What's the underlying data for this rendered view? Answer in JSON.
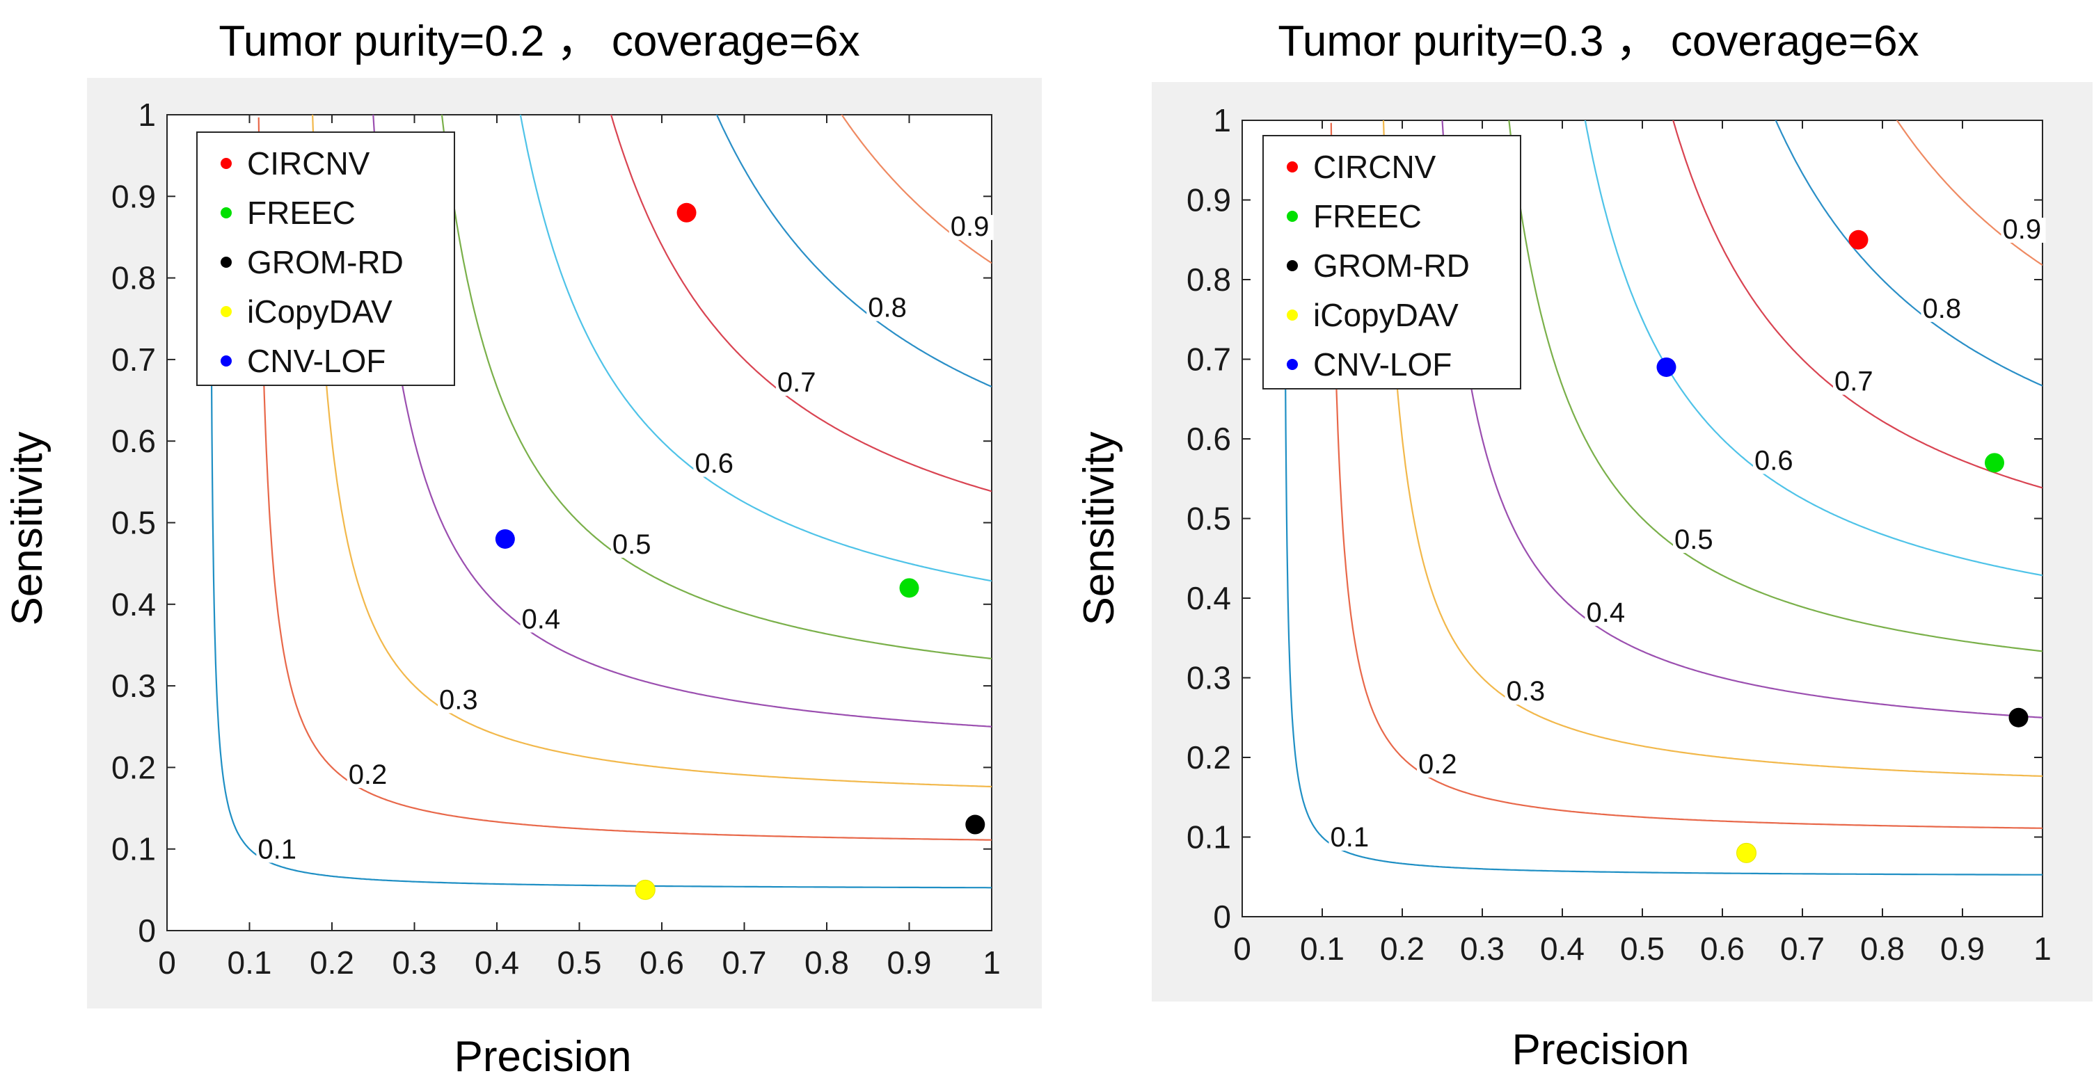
{
  "chart_data": [
    {
      "type": "scatter",
      "title": "Tumor purity=0.2 ， coverage=6x",
      "xlabel": "Precision",
      "ylabel": "Sensitivity",
      "xlim": [
        0,
        1
      ],
      "ylim": [
        0,
        1
      ],
      "xticks": [
        "0",
        "0.1",
        "0.2",
        "0.3",
        "0.4",
        "0.5",
        "0.6",
        "0.7",
        "0.8",
        "0.9",
        "1"
      ],
      "yticks": [
        "0",
        "0.1",
        "0.2",
        "0.3",
        "0.4",
        "0.5",
        "0.6",
        "0.7",
        "0.8",
        "0.9",
        "1"
      ],
      "grid": false,
      "legend_position": "top-left",
      "contour_type": "F-score iso-curves",
      "contours": [
        {
          "level": 0.1,
          "label": "0.1",
          "color": "#1f8fc4"
        },
        {
          "level": 0.2,
          "label": "0.2",
          "color": "#e8684a"
        },
        {
          "level": 0.3,
          "label": "0.3",
          "color": "#f2b84b"
        },
        {
          "level": 0.4,
          "label": "0.4",
          "color": "#9b4fb0"
        },
        {
          "level": 0.5,
          "label": "0.5",
          "color": "#7ab04a"
        },
        {
          "level": 0.6,
          "label": "0.6",
          "color": "#4fc3e8"
        },
        {
          "level": 0.7,
          "label": "0.7",
          "color": "#d94452"
        },
        {
          "level": 0.8,
          "label": "0.8",
          "color": "#2a8fc7"
        },
        {
          "level": 0.9,
          "label": "0.9",
          "color": "#ef8a62"
        }
      ],
      "series": [
        {
          "name": "CIRCNV",
          "color": "#ff0000",
          "x": 0.63,
          "y": 0.88
        },
        {
          "name": "FREEC",
          "color": "#00e000",
          "x": 0.9,
          "y": 0.42
        },
        {
          "name": "GROM-RD",
          "color": "#000000",
          "x": 0.98,
          "y": 0.13
        },
        {
          "name": "iCopyDAV",
          "color": "#ffff00",
          "x": 0.58,
          "y": 0.05
        },
        {
          "name": "CNV-LOF",
          "color": "#0000ff",
          "x": 0.41,
          "y": 0.48
        }
      ]
    },
    {
      "type": "scatter",
      "title": "Tumor purity=0.3 ， coverage=6x",
      "xlabel": "Precision",
      "ylabel": "Sensitivity",
      "xlim": [
        0,
        1
      ],
      "ylim": [
        0,
        1
      ],
      "xticks": [
        "0",
        "0.1",
        "0.2",
        "0.3",
        "0.4",
        "0.5",
        "0.6",
        "0.7",
        "0.8",
        "0.9",
        "1"
      ],
      "yticks": [
        "0",
        "0.1",
        "0.2",
        "0.3",
        "0.4",
        "0.5",
        "0.6",
        "0.7",
        "0.8",
        "0.9",
        "1"
      ],
      "grid": false,
      "legend_position": "top-left",
      "contour_type": "F-score iso-curves",
      "contours": [
        {
          "level": 0.1,
          "label": "0.1",
          "color": "#1f8fc4"
        },
        {
          "level": 0.2,
          "label": "0.2",
          "color": "#e8684a"
        },
        {
          "level": 0.3,
          "label": "0.3",
          "color": "#f2b84b"
        },
        {
          "level": 0.4,
          "label": "0.4",
          "color": "#9b4fb0"
        },
        {
          "level": 0.5,
          "label": "0.5",
          "color": "#7ab04a"
        },
        {
          "level": 0.6,
          "label": "0.6",
          "color": "#4fc3e8"
        },
        {
          "level": 0.7,
          "label": "0.7",
          "color": "#d94452"
        },
        {
          "level": 0.8,
          "label": "0.8",
          "color": "#2a8fc7"
        },
        {
          "level": 0.9,
          "label": "0.9",
          "color": "#ef8a62"
        }
      ],
      "series": [
        {
          "name": "CIRCNV",
          "color": "#ff0000",
          "x": 0.77,
          "y": 0.85
        },
        {
          "name": "FREEC",
          "color": "#00e000",
          "x": 0.94,
          "y": 0.57
        },
        {
          "name": "GROM-RD",
          "color": "#000000",
          "x": 0.97,
          "y": 0.25
        },
        {
          "name": "iCopyDAV",
          "color": "#ffff00",
          "x": 0.63,
          "y": 0.08
        },
        {
          "name": "CNV-LOF",
          "color": "#0000ff",
          "x": 0.53,
          "y": 0.69
        }
      ]
    }
  ]
}
